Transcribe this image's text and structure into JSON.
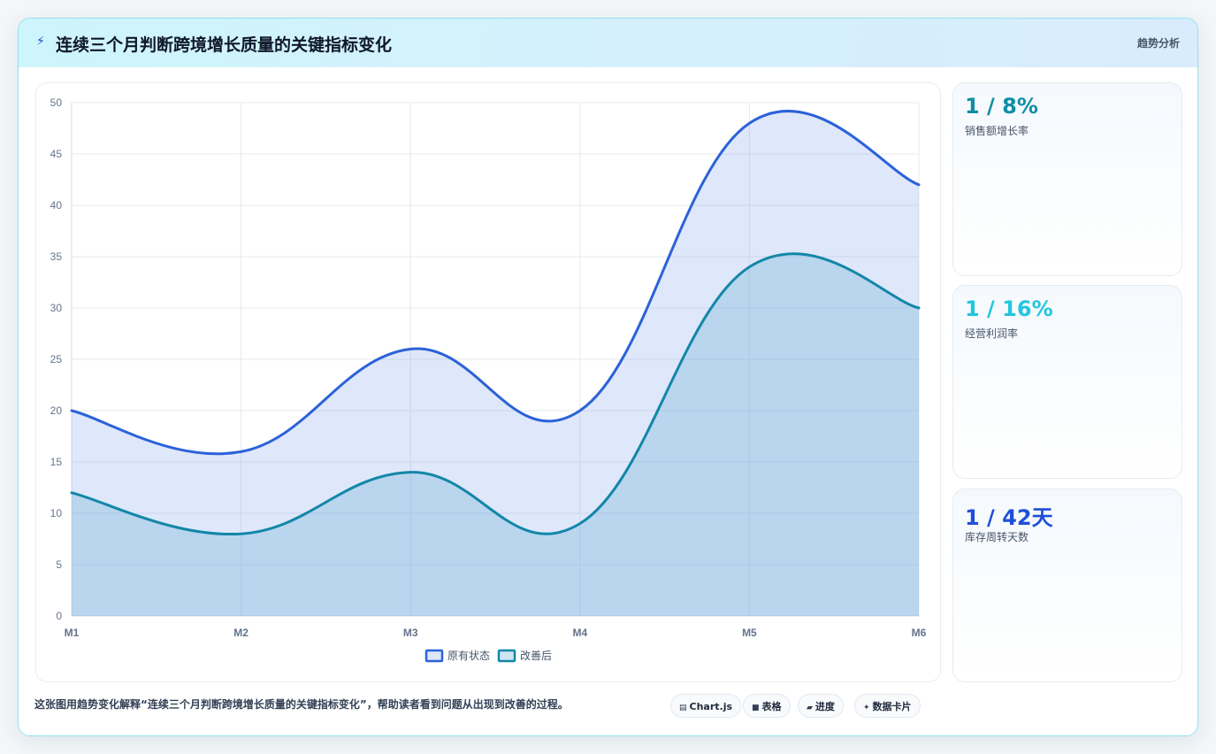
{
  "header": {
    "title": "连续三个月判断跨境增长质量的关键指标变化",
    "tag": "趋势分析"
  },
  "kpis": [
    {
      "value": "1 / 8%",
      "label": "销售额增长率",
      "color": "#0e8fa6"
    },
    {
      "value": "1 / 16%",
      "label": "经营利润率",
      "color": "#22c6de"
    },
    {
      "value": "1 / 42天",
      "label": "库存周转天数",
      "color": "#1d4fd8"
    }
  ],
  "footer": {
    "description": "这张图用趋势变化解释“连续三个月判断跨境增长质量的关键指标变化”，帮助读者看到问题从出现到改善的过程。",
    "pills": [
      {
        "icon": "▤",
        "icon_name": "chart-icon",
        "label": "Chart.js"
      },
      {
        "icon": "■",
        "icon_name": "table-icon",
        "label": "表格"
      },
      {
        "icon": "▰",
        "icon_name": "progress-icon",
        "label": "进度"
      },
      {
        "icon": "✦",
        "icon_name": "sparkle-icon",
        "label": "数据卡片"
      }
    ]
  },
  "chart_data": {
    "type": "area",
    "categories": [
      "M1",
      "M2",
      "M3",
      "M4",
      "M5",
      "M6"
    ],
    "ylim": [
      0,
      50
    ],
    "yticks": [
      0,
      5,
      10,
      15,
      20,
      25,
      30,
      35,
      40,
      45,
      50
    ],
    "grid": true,
    "legend_position": "bottom",
    "series": [
      {
        "name": "原有状态",
        "values": [
          20,
          16,
          26,
          20,
          48,
          42
        ],
        "color": "#2b62d9",
        "fill": "rgba(120,155,235,0.24)"
      },
      {
        "name": "改善后",
        "values": [
          12,
          8,
          14,
          9,
          34,
          30
        ],
        "color": "#1287a8",
        "fill": "rgba(110,175,215,0.32)"
      }
    ]
  }
}
